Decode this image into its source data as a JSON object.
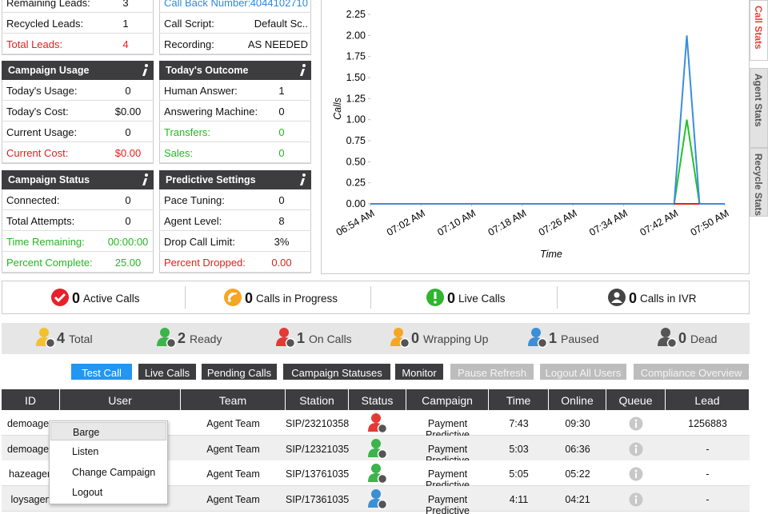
{
  "lead_rows": [
    {
      "label": "Remaining Leads:",
      "value": 3
    },
    {
      "label": "Recycled Leads:",
      "value": 1
    },
    {
      "label": "Total Leads:",
      "value": 4,
      "color": "#e02020"
    }
  ],
  "callback_rows": [
    {
      "label": "Call Back Number:",
      "value": "4044102710",
      "color": "#2a8ae0"
    },
    {
      "label": "Call Script:",
      "value": "Default Sc.."
    },
    {
      "label": "Recording:",
      "value": "AS NEEDED"
    }
  ],
  "panels": [
    {
      "title": "Campaign Usage",
      "rows": [
        {
          "label": "Today's Usage:",
          "value": 0
        },
        {
          "label": "Today's Cost:",
          "value": "$0.00"
        },
        {
          "label": "Current Usage:",
          "value": 0
        },
        {
          "label": "Current Cost:",
          "value": "$0.00",
          "color": "#e02020"
        }
      ]
    },
    {
      "title": "Today's Outcome",
      "rows": [
        {
          "label": "Human Answer:",
          "value": 1
        },
        {
          "label": "Answering Machine:",
          "value": 0
        },
        {
          "label": "Transfers:",
          "value": 0,
          "color": "#22b822"
        },
        {
          "label": "Sales:",
          "value": 0,
          "color": "#22b822"
        }
      ]
    },
    {
      "title": "Campaign Status",
      "rows": [
        {
          "label": "Connected:",
          "value": 0
        },
        {
          "label": "Total Attempts:",
          "value": 0
        },
        {
          "label": "Time Remaining:",
          "value": "00:00:00",
          "color": "#22b822"
        },
        {
          "label": "Percent Complete:",
          "value": "25.00",
          "color": "#22b822"
        }
      ]
    },
    {
      "title": "Predictive Settings",
      "rows": [
        {
          "label": "Pace Tuning:",
          "value": 0
        },
        {
          "label": "Agent Level:",
          "value": 8
        },
        {
          "label": "Drop Call Limit:",
          "value": "3%"
        },
        {
          "label": "Percent Dropped:",
          "value": "0.00",
          "color": "#e02020"
        }
      ]
    }
  ],
  "chart_data": {
    "type": "line",
    "x_label": "Time",
    "y_label": "Calls",
    "x": [
      "06:54 AM",
      "07:42 AM",
      "07:44 AM",
      "07:46 AM",
      "07:50 AM"
    ],
    "xlim": [
      "06:54 AM",
      "07:50 AM"
    ],
    "xticks": [
      "06:54 AM",
      "07:02 AM",
      "07:10 AM",
      "07:18 AM",
      "07:26 AM",
      "07:34 AM",
      "07:42 AM",
      "07:50 AM"
    ],
    "ylim": [
      0,
      2.25
    ],
    "yticks": [
      {
        "value": 0,
        "label": "0.00"
      },
      {
        "value": 0.25,
        "label": "0.25"
      },
      {
        "value": 0.5,
        "label": "0.50"
      },
      {
        "value": 0.75,
        "label": "0.75"
      },
      {
        "value": 1,
        "label": "1.00"
      },
      {
        "value": 1.25,
        "label": "1.25"
      },
      {
        "value": 1.5,
        "label": "1.50"
      },
      {
        "value": 1.75,
        "label": "1.75"
      },
      {
        "value": 2,
        "label": "2.00"
      },
      {
        "value": 2.25,
        "label": "2.25"
      }
    ],
    "series": [
      {
        "color": "#22c42a",
        "values": [
          0,
          0,
          1,
          0,
          0
        ]
      },
      {
        "color": "#3a8de0",
        "values": [
          0,
          0,
          2,
          0,
          0
        ]
      },
      {
        "color": "#e02020",
        "values": [
          null,
          0,
          0,
          0,
          null
        ]
      }
    ]
  },
  "tabs": [
    {
      "label": "Call Stats",
      "active": true
    },
    {
      "label": "Agent Stats"
    },
    {
      "label": "Recycle Stats"
    }
  ],
  "call_stats": [
    {
      "count": 0,
      "label": "Active Calls",
      "color": "#e8202a"
    },
    {
      "count": 0,
      "label": "Calls in Progress",
      "color": "#f5a623"
    },
    {
      "count": 0,
      "label": "Live Calls",
      "color": "#2fb52f"
    },
    {
      "count": 0,
      "label": "Calls in IVR",
      "color": "#444444"
    }
  ],
  "agent_stats": [
    {
      "count": 4,
      "label": "Total",
      "color": "#f2c12e"
    },
    {
      "count": 2,
      "label": "Ready",
      "color": "#3cb44b"
    },
    {
      "count": 1,
      "label": "On Calls",
      "color": "#e53935"
    },
    {
      "count": 0,
      "label": "Wrapping Up",
      "color": "#f5a623"
    },
    {
      "count": 1,
      "label": "Paused",
      "color": "#3a8fd6"
    },
    {
      "count": 0,
      "label": "Dead",
      "color": "#555555"
    }
  ],
  "buttons": [
    {
      "label": "Test Call",
      "style": "active"
    },
    {
      "label": "Live Calls",
      "style": "dark"
    },
    {
      "label": "Pending Calls",
      "style": "dark"
    },
    {
      "label": "Campaign Statuses",
      "style": "dark"
    },
    {
      "label": "Monitor",
      "style": "dark"
    },
    {
      "label": "Pause Refresh",
      "style": "disabled"
    },
    {
      "label": "Logout All Users",
      "style": "disabled"
    },
    {
      "label": "Compliance Overview",
      "style": "disabled"
    }
  ],
  "table": {
    "columns": [
      "ID",
      "User",
      "Team",
      "Station",
      "Status",
      "Campaign",
      "Time",
      "Online",
      "Queue",
      "Lead"
    ],
    "rows": [
      {
        "id": "demoagen",
        "team": "Agent Team",
        "station": "SIP/23210358",
        "status_color": "#e53935",
        "campaign": "Payment Predictive",
        "time": "7:43",
        "online": "09:30",
        "lead": "1256883"
      },
      {
        "id": "demoagen",
        "team": "Agent Team",
        "station": "SIP/12321035",
        "status_color": "#3cb44b",
        "campaign": "Payment Predictive",
        "time": "5:03",
        "online": "06:36",
        "lead": "-"
      },
      {
        "id": "hazeagen",
        "team": "Agent Team",
        "station": "SIP/13761035",
        "status_color": "#3cb44b",
        "campaign": "Payment Predictive",
        "time": "5:05",
        "online": "05:22",
        "lead": "-"
      },
      {
        "id": "loysagen",
        "team": "Agent Team",
        "station": "SIP/17361035",
        "status_color": "#3a8fd6",
        "campaign": "Payment Predictive",
        "time": "4:11",
        "online": "04:21",
        "lead": "-"
      }
    ]
  },
  "context_menu": [
    "Barge",
    "Listen",
    "Change Campaign",
    "Logout"
  ]
}
